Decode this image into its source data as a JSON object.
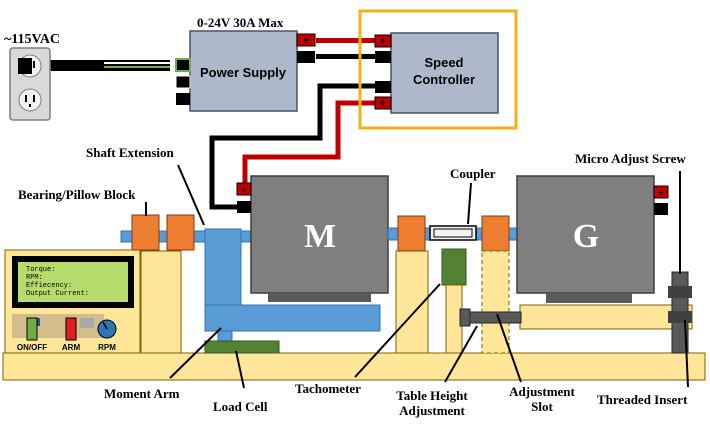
{
  "labels": {
    "mains_voltage": "~115VAC",
    "ps_rating": "0-24V 30A Max",
    "power_supply": "Power Supply",
    "speed_controller_line1": "Speed",
    "speed_controller_line2": "Controller",
    "motor": "M",
    "generator": "G",
    "shaft_extension": "Shaft Extension",
    "bearing_pillow_block": "Bearing/Pillow Block",
    "coupler": "Coupler",
    "micro_adjust_screw": "Micro Adjust Screw",
    "moment_arm": "Moment Arm",
    "load_cell": "Load Cell",
    "tachometer": "Tachometer",
    "table_height_line1": "Table Height",
    "table_height_line2": "Adjustment",
    "adjustment_slot_line1": "Adjustment",
    "adjustment_slot_line2": "Slot",
    "threaded_insert": "Threaded Insert"
  },
  "display": {
    "torque": "Torque:",
    "rpm": "RPM:",
    "efficiency": "Effiecency:",
    "output_current": "Output Current:"
  },
  "controls": {
    "on_off": "ON/OFF",
    "arm": "ARM",
    "rpm": "RPM"
  },
  "terminals": {
    "plus": "+"
  },
  "colors": {
    "box_gray": "#adb9ca",
    "motor_gray": "#7f7f7f",
    "wood": "#ffe699",
    "orange_block": "#ed7d31",
    "blue_arm": "#5b9bd5",
    "green_sensor": "#548235",
    "lcd_green": "#b7dc6e",
    "highlight_gold": "#f2b31a",
    "wire_red": "#c00000",
    "switch_green": "#70ad47",
    "switch_red": "#e02020",
    "knob_blue": "#2f75b5"
  }
}
